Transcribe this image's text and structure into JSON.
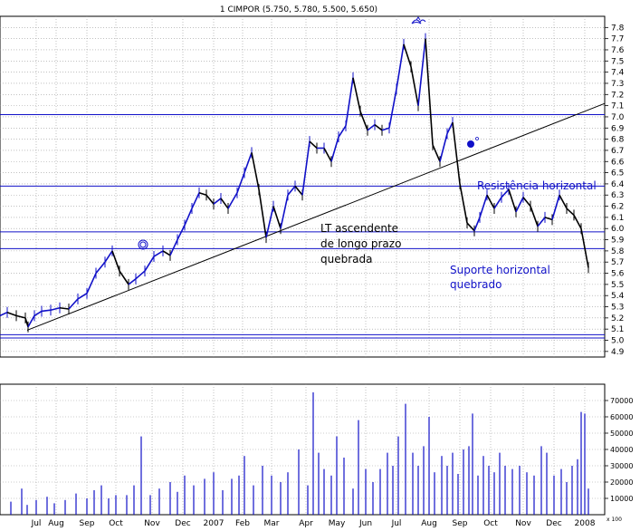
{
  "chart_data": [
    {
      "type": "line",
      "title": "1 CIMPOR (5.750, 5.780, 5.500, 5.650)",
      "x_ticks": [
        "Jul",
        "Aug",
        "Sep",
        "Oct",
        "Nov",
        "Dec",
        "2007",
        "Feb",
        "Mar",
        "Apr",
        "May",
        "Jun",
        "Jul",
        "Aug",
        "Sep",
        "Oct",
        "Nov",
        "Dec",
        "2008"
      ],
      "y_ticks": [
        4.9,
        5.0,
        5.1,
        5.2,
        5.3,
        5.4,
        5.5,
        5.6,
        5.7,
        5.8,
        5.9,
        6.0,
        6.1,
        6.2,
        6.3,
        6.4,
        6.5,
        6.6,
        6.7,
        6.8,
        6.9,
        7.0,
        7.1,
        7.2,
        7.3,
        7.4,
        7.5,
        7.6,
        7.7,
        7.8
      ],
      "ylim": [
        4.85,
        7.9
      ],
      "grid": true,
      "series": [
        {
          "values": [
            [
              0,
              5.22
            ],
            [
              8,
              5.25
            ],
            [
              18,
              5.22
            ],
            [
              28,
              5.2
            ],
            [
              31,
              5.12
            ],
            [
              38,
              5.22
            ],
            [
              46,
              5.26
            ],
            [
              56,
              5.27
            ],
            [
              66,
              5.29
            ],
            [
              76,
              5.28
            ],
            [
              86,
              5.37
            ],
            [
              96,
              5.42
            ],
            [
              106,
              5.6
            ],
            [
              116,
              5.7
            ],
            [
              124,
              5.8
            ],
            [
              132,
              5.62
            ],
            [
              142,
              5.5
            ],
            [
              150,
              5.55
            ],
            [
              160,
              5.62
            ],
            [
              170,
              5.75
            ],
            [
              180,
              5.8
            ],
            [
              188,
              5.76
            ],
            [
              196,
              5.9
            ],
            [
              204,
              6.03
            ],
            [
              212,
              6.18
            ],
            [
              220,
              6.32
            ],
            [
              228,
              6.3
            ],
            [
              236,
              6.22
            ],
            [
              244,
              6.27
            ],
            [
              252,
              6.18
            ],
            [
              262,
              6.32
            ],
            [
              270,
              6.5
            ],
            [
              278,
              6.68
            ],
            [
              286,
              6.35
            ],
            [
              294,
              5.92
            ],
            [
              302,
              6.2
            ],
            [
              310,
              6.0
            ],
            [
              318,
              6.3
            ],
            [
              326,
              6.38
            ],
            [
              334,
              6.3
            ],
            [
              342,
              6.78
            ],
            [
              350,
              6.72
            ],
            [
              358,
              6.72
            ],
            [
              366,
              6.6
            ],
            [
              374,
              6.82
            ],
            [
              382,
              6.92
            ],
            [
              390,
              7.35
            ],
            [
              398,
              7.05
            ],
            [
              406,
              6.88
            ],
            [
              414,
              6.93
            ],
            [
              422,
              6.88
            ],
            [
              430,
              6.9
            ],
            [
              438,
              7.25
            ],
            [
              446,
              7.65
            ],
            [
              454,
              7.45
            ],
            [
              462,
              7.1
            ],
            [
              470,
              7.7
            ],
            [
              478,
              6.75
            ],
            [
              486,
              6.6
            ],
            [
              494,
              6.85
            ],
            [
              500,
              6.95
            ],
            [
              508,
              6.4
            ],
            [
              516,
              6.05
            ],
            [
              524,
              5.98
            ],
            [
              530,
              6.1
            ],
            [
              538,
              6.3
            ],
            [
              546,
              6.18
            ],
            [
              554,
              6.28
            ],
            [
              562,
              6.35
            ],
            [
              570,
              6.15
            ],
            [
              578,
              6.28
            ],
            [
              586,
              6.2
            ],
            [
              594,
              6.02
            ],
            [
              602,
              6.1
            ],
            [
              610,
              6.08
            ],
            [
              618,
              6.3
            ],
            [
              626,
              6.18
            ],
            [
              634,
              6.12
            ],
            [
              642,
              6.0
            ],
            [
              650,
              5.65
            ]
          ]
        }
      ],
      "annotations": [
        "LT ascendente",
        "de longo prazo",
        "quebrada",
        "Resistência horizontal",
        "Suporte horizontal",
        "quebrado"
      ]
    },
    {
      "type": "bar",
      "y_ticks": [
        10000,
        20000,
        30000,
        40000,
        50000,
        60000,
        70000
      ],
      "ylim": [
        0,
        80000
      ],
      "scale_label": "x 100",
      "values": [
        [
          12,
          8000
        ],
        [
          24,
          16000
        ],
        [
          30,
          6000
        ],
        [
          40,
          9000
        ],
        [
          52,
          11000
        ],
        [
          60,
          7000
        ],
        [
          72,
          9000
        ],
        [
          84,
          13000
        ],
        [
          96,
          10000
        ],
        [
          104,
          15000
        ],
        [
          112,
          18000
        ],
        [
          120,
          10000
        ],
        [
          128,
          12000
        ],
        [
          140,
          12000
        ],
        [
          148,
          18000
        ],
        [
          156,
          48000
        ],
        [
          166,
          12000
        ],
        [
          176,
          16000
        ],
        [
          188,
          20000
        ],
        [
          196,
          14000
        ],
        [
          204,
          24000
        ],
        [
          214,
          18000
        ],
        [
          226,
          22000
        ],
        [
          236,
          26000
        ],
        [
          246,
          15000
        ],
        [
          256,
          22000
        ],
        [
          264,
          24000
        ],
        [
          270,
          36000
        ],
        [
          280,
          18000
        ],
        [
          290,
          30000
        ],
        [
          300,
          24000
        ],
        [
          310,
          20000
        ],
        [
          318,
          26000
        ],
        [
          330,
          40000
        ],
        [
          340,
          18000
        ],
        [
          346,
          75000
        ],
        [
          352,
          38000
        ],
        [
          358,
          28000
        ],
        [
          366,
          24000
        ],
        [
          372,
          48000
        ],
        [
          380,
          35000
        ],
        [
          390,
          16000
        ],
        [
          396,
          58000
        ],
        [
          404,
          28000
        ],
        [
          412,
          20000
        ],
        [
          420,
          28000
        ],
        [
          428,
          38000
        ],
        [
          434,
          30000
        ],
        [
          440,
          48000
        ],
        [
          448,
          68000
        ],
        [
          456,
          38000
        ],
        [
          462,
          30000
        ],
        [
          468,
          42000
        ],
        [
          474,
          60000
        ],
        [
          480,
          26000
        ],
        [
          488,
          36000
        ],
        [
          494,
          30000
        ],
        [
          500,
          38000
        ],
        [
          506,
          25000
        ],
        [
          512,
          40000
        ],
        [
          518,
          42000
        ],
        [
          522,
          62000
        ],
        [
          528,
          24000
        ],
        [
          534,
          36000
        ],
        [
          540,
          30000
        ],
        [
          546,
          26000
        ],
        [
          552,
          38000
        ],
        [
          558,
          30000
        ],
        [
          566,
          28000
        ],
        [
          574,
          30000
        ],
        [
          582,
          26000
        ],
        [
          590,
          24000
        ],
        [
          598,
          42000
        ],
        [
          604,
          38000
        ],
        [
          612,
          24000
        ],
        [
          620,
          28000
        ],
        [
          626,
          20000
        ],
        [
          632,
          30000
        ],
        [
          638,
          34000
        ],
        [
          642,
          63000
        ],
        [
          646,
          62000
        ],
        [
          650,
          16000
        ]
      ]
    }
  ]
}
